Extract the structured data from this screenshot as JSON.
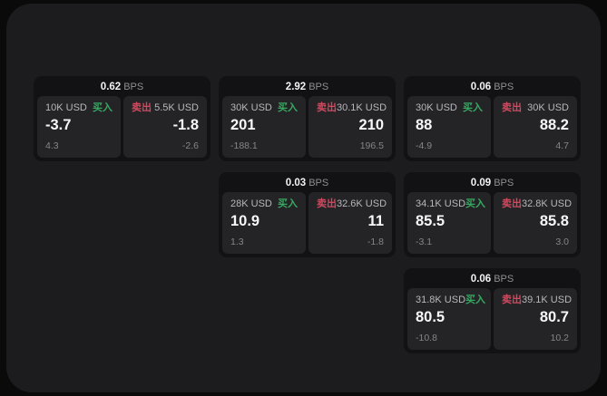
{
  "page": {
    "background": "#0a0a0b",
    "panel_background": "#1c1c1e"
  },
  "labels": {
    "buy": "买入",
    "sell": "卖出",
    "bps_unit": "BPS"
  },
  "colors": {
    "buy_green": "#36a960",
    "sell_red": "#d04a5f"
  },
  "cards": [
    {
      "col": 0,
      "row": 0,
      "bps": "0.62",
      "buy": {
        "size": "10K USD",
        "value": "-3.7",
        "sub": "4.3"
      },
      "sell": {
        "size": "5.5K USD",
        "value": "-1.8",
        "sub": "-2.6"
      }
    },
    {
      "col": 1,
      "row": 0,
      "bps": "2.92",
      "buy": {
        "size": "30K USD",
        "value": "201",
        "sub": "-188.1"
      },
      "sell": {
        "size": "30.1K USD",
        "value": "210",
        "sub": "196.5"
      }
    },
    {
      "col": 2,
      "row": 0,
      "bps": "0.06",
      "buy": {
        "size": "30K USD",
        "value": "88",
        "sub": "-4.9"
      },
      "sell": {
        "size": "30K USD",
        "value": "88.2",
        "sub": "4.7"
      }
    },
    {
      "col": 1,
      "row": 1,
      "bps": "0.03",
      "buy": {
        "size": "28K USD",
        "value": "10.9",
        "sub": "1.3"
      },
      "sell": {
        "size": "32.6K USD",
        "value": "11",
        "sub": "-1.8"
      }
    },
    {
      "col": 2,
      "row": 1,
      "bps": "0.09",
      "buy": {
        "size": "34.1K USD",
        "value": "85.5",
        "sub": "-3.1"
      },
      "sell": {
        "size": "32.8K USD",
        "value": "85.8",
        "sub": "3.0"
      }
    },
    {
      "col": 2,
      "row": 2,
      "bps": "0.06",
      "buy": {
        "size": "31.8K USD",
        "value": "80.5",
        "sub": "-10.8"
      },
      "sell": {
        "size": "39.1K USD",
        "value": "80.7",
        "sub": "10.2"
      }
    }
  ]
}
